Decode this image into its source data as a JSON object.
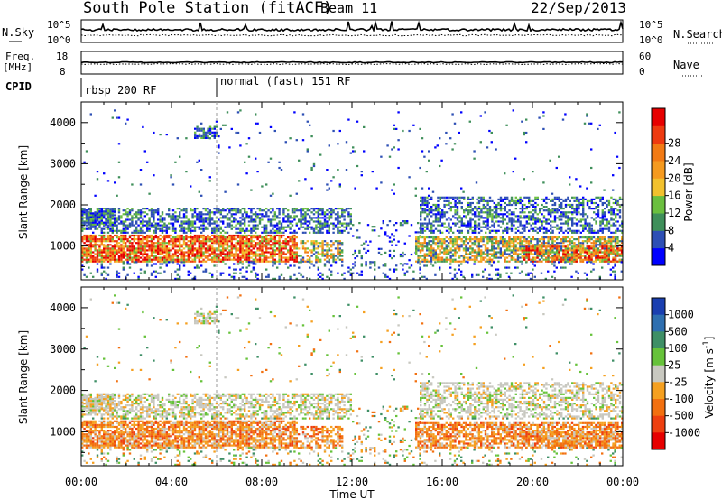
{
  "header": {
    "title": "South Pole Station (fitACF)",
    "beam": "Beam 11",
    "date": "22/Sep/2013"
  },
  "noise_panel": {
    "left_label": "N.Sky",
    "right_label": "N.Search",
    "left_ticks": [
      "10^5",
      "10^0"
    ],
    "right_ticks": [
      "10^5",
      "10^0"
    ]
  },
  "freq_panel": {
    "left_label_1": "Freq.",
    "left_label_2": "[MHz]",
    "right_label": "Nave",
    "left_ticks": [
      "18",
      "8"
    ],
    "right_ticks": [
      "60",
      "0"
    ]
  },
  "cpid_panel": {
    "label": "CPID",
    "modes": [
      {
        "start_hour": 0,
        "text": "rbsp 200 RF"
      },
      {
        "start_hour": 6,
        "text": "normal (fast) 151 RF"
      }
    ]
  },
  "chart_data": [
    {
      "type": "heatmap",
      "name": "power",
      "ylabel": "Slant Range [km]",
      "xlabel": "Time UT",
      "x_ticks": [
        "00:00",
        "04:00",
        "08:00",
        "12:00",
        "16:00",
        "20:00",
        "00:00"
      ],
      "x_range_hours": [
        0,
        24
      ],
      "y_range_km": [
        180,
        4500
      ],
      "y_ticks": [
        1000,
        2000,
        3000,
        4000
      ],
      "colorbar": {
        "label": "Power [dB]",
        "ticks": [
          "4",
          "8",
          "12",
          "16",
          "20",
          "24",
          "28"
        ],
        "colors": [
          "#0000ff",
          "#2d4fb5",
          "#3f8f5a",
          "#6bbf3f",
          "#f2c12e",
          "#f59a1f",
          "#f27a14",
          "#ee3a10",
          "#e60000"
        ]
      }
    },
    {
      "type": "heatmap",
      "name": "velocity",
      "ylabel": "Slant Range [km]",
      "xlabel": "Time UT",
      "x_ticks": [
        "00:00",
        "04:00",
        "08:00",
        "12:00",
        "16:00",
        "20:00",
        "00:00"
      ],
      "x_range_hours": [
        0,
        24
      ],
      "y_range_km": [
        180,
        4500
      ],
      "y_ticks": [
        1000,
        2000,
        3000,
        4000
      ],
      "colorbar": {
        "label": "Velocity [m s^-1]",
        "ticks": [
          "1000",
          "500",
          "100",
          "25",
          "-25",
          "-100",
          "-500",
          "-1000"
        ],
        "colors": [
          "#1a3fb0",
          "#2e6fb0",
          "#3e8f66",
          "#66c23a",
          "#c8c8c0",
          "#f5a020",
          "#f27010",
          "#ee4010",
          "#e60000"
        ]
      }
    }
  ]
}
